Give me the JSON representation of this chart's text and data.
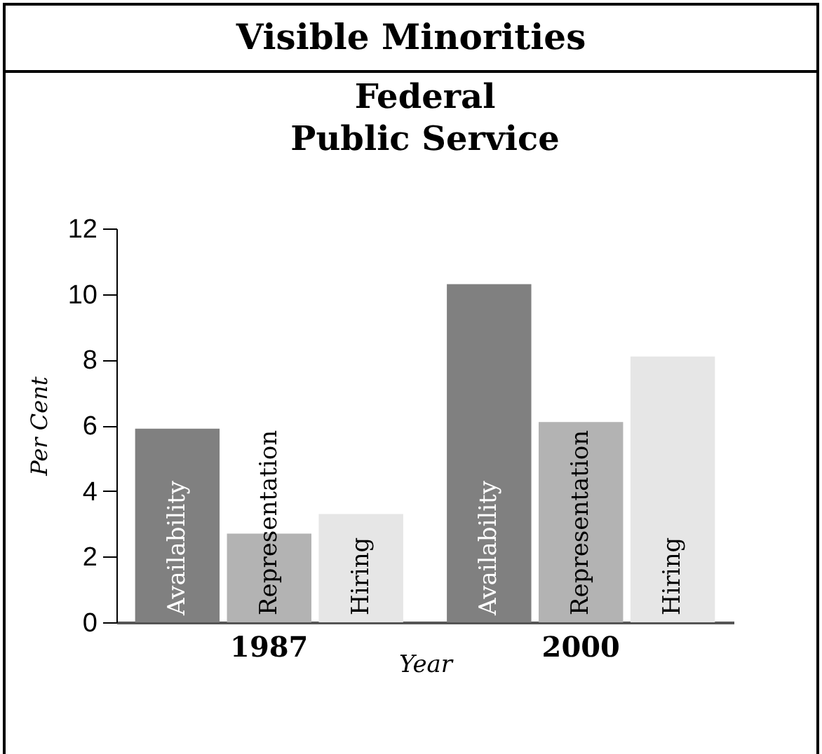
{
  "chart_data": {
    "type": "bar",
    "title": "Visible Minorities",
    "subtitle": "Federal Public Service",
    "xlabel": "Year",
    "ylabel": "Per Cent",
    "categories": [
      "1987",
      "2000"
    ],
    "series": [
      {
        "name": "Availability",
        "color": "#808080",
        "values": [
          5.9,
          10.3
        ]
      },
      {
        "name": "Representation",
        "color": "#b3b3b3",
        "values": [
          2.7,
          6.1
        ]
      },
      {
        "name": "Hiring",
        "color": "#e6e6e6",
        "values": [
          3.3,
          8.1
        ]
      }
    ],
    "ylim": [
      0,
      12
    ],
    "yticks": [
      0,
      2,
      4,
      6,
      8,
      10,
      12
    ],
    "grid": false,
    "legend": false
  }
}
